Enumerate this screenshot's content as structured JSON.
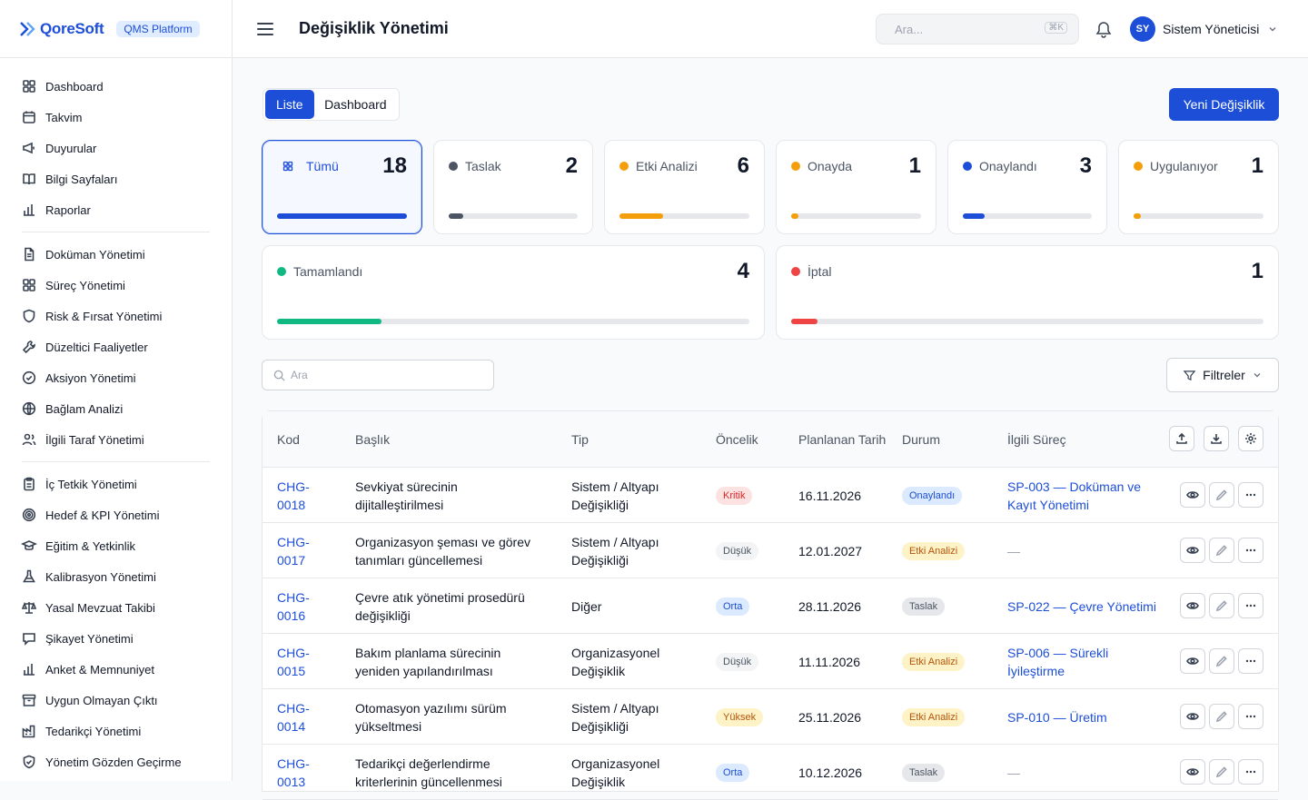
{
  "brand": {
    "name": "QoreSoft",
    "platform": "QMS Platform"
  },
  "sidebar": {
    "groups": [
      [
        {
          "label": "Dashboard",
          "icon": "grid-icon"
        },
        {
          "label": "Takvim",
          "icon": "calendar-icon"
        },
        {
          "label": "Duyurular",
          "icon": "megaphone-icon"
        },
        {
          "label": "Bilgi Sayfaları",
          "icon": "book-icon"
        },
        {
          "label": "Raporlar",
          "icon": "bar-chart-icon"
        }
      ],
      [
        {
          "label": "Doküman Yönetimi",
          "icon": "file-icon"
        },
        {
          "label": "Süreç Yönetimi",
          "icon": "grid-icon"
        },
        {
          "label": "Risk & Fırsat Yönetimi",
          "icon": "shield-icon"
        },
        {
          "label": "Düzeltici Faaliyetler",
          "icon": "wrench-icon"
        },
        {
          "label": "Aksiyon Yönetimi",
          "icon": "check-circle-icon"
        },
        {
          "label": "Bağlam Analizi",
          "icon": "globe-icon"
        },
        {
          "label": "İlgili Taraf Yönetimi",
          "icon": "users-icon"
        }
      ],
      [
        {
          "label": "İç Tetkik Yönetimi",
          "icon": "clipboard-icon"
        },
        {
          "label": "Hedef & KPI Yönetimi",
          "icon": "target-icon"
        },
        {
          "label": "Eğitim & Yetkinlik",
          "icon": "graduation-cap-icon"
        },
        {
          "label": "Kalibrasyon Yönetimi",
          "icon": "flask-icon"
        },
        {
          "label": "Yasal Mevzuat Takibi",
          "icon": "scale-icon"
        },
        {
          "label": "Şikayet Yönetimi",
          "icon": "message-icon"
        },
        {
          "label": "Anket & Memnuniyet",
          "icon": "bar-chart-icon"
        },
        {
          "label": "Uygun Olmayan Çıktı",
          "icon": "archive-icon"
        },
        {
          "label": "Tedarikçi Yönetimi",
          "icon": "factory-icon"
        },
        {
          "label": "Yönetim Gözden Geçirme",
          "icon": "shield-check-icon"
        }
      ]
    ]
  },
  "header": {
    "title": "Değişiklik Yönetimi",
    "search_placeholder": "Ara...",
    "shortcut": "⌘K",
    "user_initials": "SY",
    "user_name": "Sistem Yöneticisi"
  },
  "view_toggle": {
    "list": "Liste",
    "dashboard": "Dashboard",
    "active": "list"
  },
  "new_button": "Yeni Değişiklik",
  "stats": [
    {
      "label": "Tümü",
      "count": "18",
      "color": "#1d4ed8",
      "fraction": 1.0,
      "selected": true
    },
    {
      "label": "Taslak",
      "count": "2",
      "color": "#4b5563",
      "fraction": 0.111
    },
    {
      "label": "Etki Analizi",
      "count": "6",
      "color": "#f59e0b",
      "fraction": 0.333
    },
    {
      "label": "Onayda",
      "count": "1",
      "color": "#f59e0b",
      "fraction": 0.056
    },
    {
      "label": "Onaylandı",
      "count": "3",
      "color": "#1d4ed8",
      "fraction": 0.167
    },
    {
      "label": "Uygulanıyor",
      "count": "1",
      "color": "#f59e0b",
      "fraction": 0.056
    },
    {
      "label": "Tamamlandı",
      "count": "4",
      "color": "#10b981",
      "fraction": 0.222
    },
    {
      "label": "İptal",
      "count": "1",
      "color": "#ef4444",
      "fraction": 0.056
    }
  ],
  "list_search_placeholder": "Ara",
  "filter_button": "Filtreler",
  "table": {
    "columns": [
      "Kod",
      "Başlık",
      "Tip",
      "Öncelik",
      "Planlanan Tarih",
      "Durum",
      "İlgili Süreç"
    ],
    "rows": [
      {
        "code": "CHG-0018",
        "title": "Sevkiyat sürecinin dijitalleştirilmesi",
        "type": "Sistem / Altyapı Değişikliği",
        "priority": "Kritik",
        "date": "16.11.2026",
        "status": "Onaylandı",
        "process": "SP-003 — Doküman ve Kayıt Yönetimi"
      },
      {
        "code": "CHG-0017",
        "title": "Organizasyon şeması ve görev tanımları güncellemesi",
        "type": "Sistem / Altyapı Değişikliği",
        "priority": "Düşük",
        "date": "12.01.2027",
        "status": "Etki Analizi",
        "process": "—"
      },
      {
        "code": "CHG-0016",
        "title": "Çevre atık yönetimi prosedürü değişikliği",
        "type": "Diğer",
        "priority": "Orta",
        "date": "28.11.2026",
        "status": "Taslak",
        "process": "SP-022 — Çevre Yönetimi"
      },
      {
        "code": "CHG-0015",
        "title": "Bakım planlama sürecinin yeniden yapılandırılması",
        "type": "Organizasyonel Değişiklik",
        "priority": "Düşük",
        "date": "11.11.2026",
        "status": "Etki Analizi",
        "process": "SP-006 — Sürekli İyileştirme"
      },
      {
        "code": "CHG-0014",
        "title": "Otomasyon yazılımı sürüm yükseltmesi",
        "type": "Sistem / Altyapı Değişikliği",
        "priority": "Yüksek",
        "date": "25.11.2026",
        "status": "Etki Analizi",
        "process": "SP-010 — Üretim"
      },
      {
        "code": "CHG-0013",
        "title": "Tedarikçi değerlendirme kriterlerinin güncellenmesi",
        "type": "Organizasyonel Değişiklik",
        "priority": "Orta",
        "date": "10.12.2026",
        "status": "Taslak",
        "process": "—"
      }
    ]
  },
  "colors": {
    "priority": {
      "Kritik": {
        "bg": "#fde2e2",
        "fg": "#dc2626"
      },
      "Düşük": {
        "bg": "#f3f4f6",
        "fg": "#4b5563"
      },
      "Orta": {
        "bg": "#dbeafe",
        "fg": "#1d4ed8"
      },
      "Yüksek": {
        "bg": "#fef3c7",
        "fg": "#b45309"
      }
    },
    "status": {
      "Onaylandı": {
        "bg": "#dbeafe",
        "fg": "#1d4ed8"
      },
      "Etki Analizi": {
        "bg": "#fef3c7",
        "fg": "#b45309"
      },
      "Taslak": {
        "bg": "#e5e7eb",
        "fg": "#4b5563"
      }
    }
  }
}
